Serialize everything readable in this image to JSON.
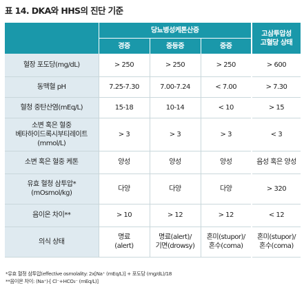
{
  "title": "표 14. DKA와 HHS의 진단 기준",
  "header": {
    "group": "당뇨병성케톤산증",
    "sub": [
      "경증",
      "중등증",
      "중증"
    ],
    "last": [
      "고삼투압성",
      "고혈당 상태"
    ]
  },
  "rows": [
    {
      "label": [
        "혈장 포도당(mg/dL)"
      ],
      "cells": [
        [
          "> 250"
        ],
        [
          "> 250"
        ],
        [
          "> 250"
        ],
        [
          "> 600"
        ]
      ]
    },
    {
      "label": [
        "동맥혈 pH"
      ],
      "cells": [
        [
          "7.25-7.30"
        ],
        [
          "7.00-7.24"
        ],
        [
          "< 7.00"
        ],
        [
          "> 7.30"
        ]
      ]
    },
    {
      "label": [
        "혈청 중탄산염(mEq/L)"
      ],
      "cells": [
        [
          "15-18"
        ],
        [
          "10-14"
        ],
        [
          "< 10"
        ],
        [
          "> 15"
        ]
      ]
    },
    {
      "label": [
        "소변 혹은 혈중",
        "베타하이드록시부티레이트",
        "(mmol/L)"
      ],
      "cells": [
        [
          "> 3"
        ],
        [
          "> 3"
        ],
        [
          "> 3"
        ],
        [
          "< 3"
        ]
      ]
    },
    {
      "label": [
        "소변 혹은 혈중 케톤"
      ],
      "cells": [
        [
          "양성"
        ],
        [
          "양성"
        ],
        [
          "양성"
        ],
        [
          "음성 혹은 양성"
        ]
      ]
    },
    {
      "label": [
        "유효 혈청 삼투압*",
        "(mOsmol/kg)"
      ],
      "cells": [
        [
          "다양"
        ],
        [
          "다양"
        ],
        [
          "다양"
        ],
        [
          "> 320"
        ]
      ]
    },
    {
      "label": [
        "음이온 차이**"
      ],
      "cells": [
        [
          "> 10"
        ],
        [
          "> 12"
        ],
        [
          "> 12"
        ],
        [
          "< 12"
        ]
      ]
    },
    {
      "label": [
        "의식 상태"
      ],
      "cells": [
        [
          "명료",
          "(alert)"
        ],
        [
          "명료(alert)/",
          "기면(drowsy)"
        ],
        [
          "혼미(stupor)/",
          "혼수(coma)"
        ],
        [
          "혼미(stupor)/",
          "혼수(coma)"
        ]
      ]
    }
  ],
  "notes": [
    "*유효 혈청 삼투압(effective osmolality: 2x[Na⁺ (mEq/L)] + 포도당 (mg/dL)/18",
    "**음이온 차이: (Na⁺)-[ Cl⁻+HCO₃⁻ (mEq/L)]"
  ]
}
